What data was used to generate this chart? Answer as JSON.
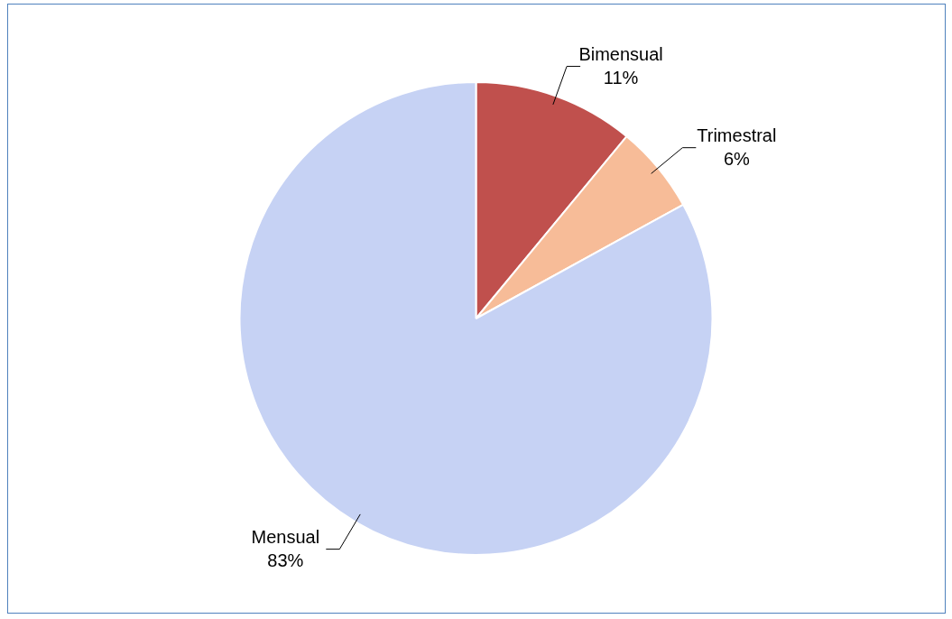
{
  "chart_data": {
    "type": "pie",
    "categories": [
      "Bimensual",
      "Trimestral",
      "Mensual"
    ],
    "values": [
      11,
      6,
      83
    ],
    "colors": [
      "#c0504d",
      "#f7bc98",
      "#c6d2f4"
    ],
    "value_labels": [
      "11%",
      "6%",
      "83%"
    ],
    "legend": false
  }
}
